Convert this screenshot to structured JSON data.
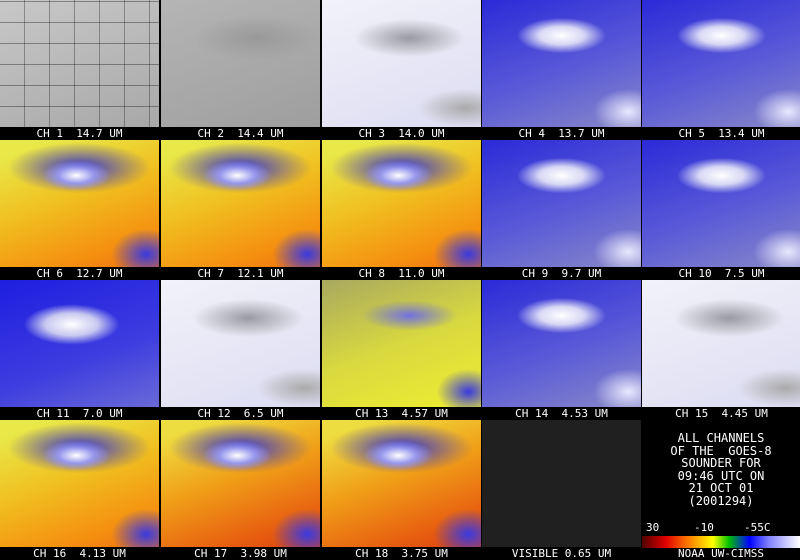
{
  "panels": [
    {
      "label": "CH 1  14.7 UM"
    },
    {
      "label": "CH 2  14.4 UM"
    },
    {
      "label": "CH 3  14.0 UM"
    },
    {
      "label": "CH 4  13.7 UM"
    },
    {
      "label": "CH 5  13.4 UM"
    },
    {
      "label": "CH 6  12.7 UM"
    },
    {
      "label": "CH 7  12.1 UM"
    },
    {
      "label": "CH 8  11.0 UM"
    },
    {
      "label": "CH 9  9.7 UM"
    },
    {
      "label": "CH 10  7.5 UM"
    },
    {
      "label": "CH 11  7.0 UM"
    },
    {
      "label": "CH 12  6.5 UM"
    },
    {
      "label": "CH 13  4.57 UM"
    },
    {
      "label": "CH 14  4.53 UM"
    },
    {
      "label": "CH 15  4.45 UM"
    },
    {
      "label": "CH 16  4.13 UM"
    },
    {
      "label": "CH 17  3.98 UM"
    },
    {
      "label": "CH 18  3.75 UM"
    },
    {
      "label": "VISIBLE 0.65 UM"
    }
  ],
  "info": {
    "lines": [
      "ALL CHANNELS",
      "OF THE  GOES-8",
      "SOUNDER FOR",
      "09:46 UTC ON",
      "21 OCT 01",
      "(2001294)"
    ],
    "scale_labels": [
      "30",
      "-10",
      "-55C"
    ],
    "credit": "NOAA UW-CIMSS"
  }
}
